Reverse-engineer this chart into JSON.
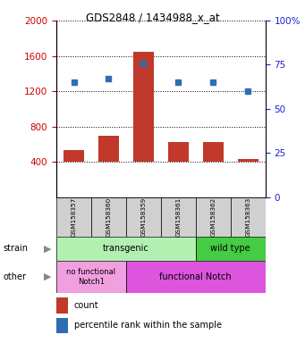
{
  "title": "GDS2848 / 1434988_x_at",
  "samples": [
    "GSM158357",
    "GSM158360",
    "GSM158359",
    "GSM158361",
    "GSM158362",
    "GSM158363"
  ],
  "counts": [
    530,
    700,
    1650,
    620,
    630,
    430
  ],
  "percentiles": [
    65,
    67,
    76,
    65,
    65,
    60
  ],
  "ylim_left": [
    0,
    2000
  ],
  "ylim_right": [
    0,
    100
  ],
  "yticks_left": [
    400,
    800,
    1200,
    1600,
    2000
  ],
  "yticks_right": [
    0,
    25,
    50,
    75,
    100
  ],
  "bar_color": "#c0392b",
  "dot_color": "#2e6db4",
  "strain_transgenic_label": "transgenic",
  "strain_wildtype_label": "wild type",
  "other_nofunc_label": "no functional\nNotch1",
  "other_func_label": "functional Notch",
  "strain_trans_color": "#b2f0b2",
  "strain_wt_color": "#44cc44",
  "other_nofunc_color": "#f0a0e0",
  "other_func_color": "#dd55dd",
  "legend_count_label": "count",
  "legend_pct_label": "percentile rank within the sample",
  "bar_bottom": 400,
  "left_label_color": "#cc0000",
  "right_label_color": "#2222cc"
}
